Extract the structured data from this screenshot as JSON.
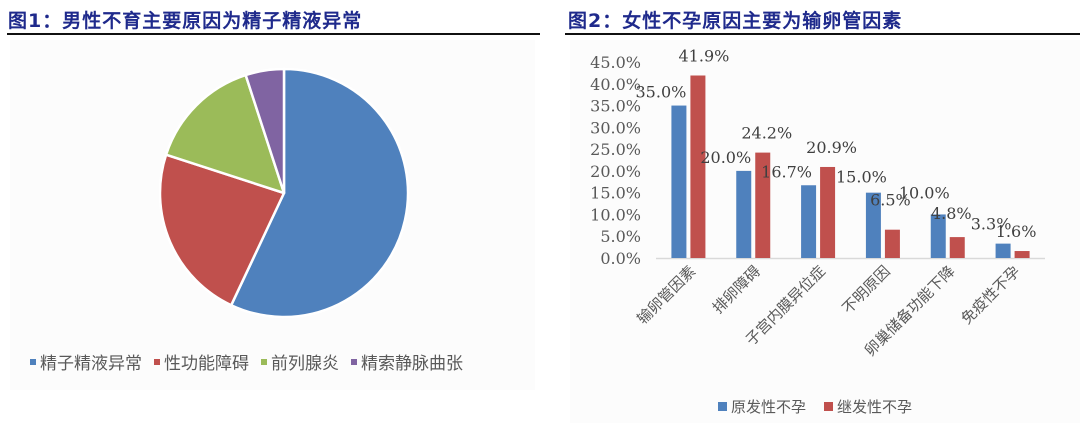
{
  "figure1": {
    "title": "图1：男性不育主要原因为精子精液异常"
  },
  "figure2": {
    "title": "图2：女性不孕原因主要为输卵管因素"
  },
  "chart_data": [
    {
      "type": "pie",
      "title": "图1：男性不育主要原因为精子精液异常",
      "categories": [
        "精子精液异常",
        "性功能障碍",
        "前列腺炎",
        "精索静脉曲张"
      ],
      "values": [
        57,
        23,
        15,
        5
      ],
      "colors": [
        "#4f81bd",
        "#c0504d",
        "#9bbb59",
        "#8064a2"
      ],
      "start_angle_deg": 0,
      "direction": "clockwise",
      "data_labels": false,
      "legend_position": "bottom",
      "legend": [
        "精子精液异常",
        "性功能障碍",
        "前列腺炎",
        "精索静脉曲张"
      ]
    },
    {
      "type": "bar",
      "title": "图2：女性不孕原因主要为输卵管因素",
      "categories": [
        "输卵管因素",
        "排卵障碍",
        "子宫内膜异位症",
        "不明原因",
        "卵巢储备功能下降",
        "免疫性不孕"
      ],
      "series": [
        {
          "name": "原发性不孕",
          "values": [
            35.0,
            20.0,
            16.7,
            15.0,
            10.0,
            3.3
          ],
          "labels": [
            "35.0%",
            "20.0%",
            "16.7%",
            "15.0%",
            "10.0%",
            "3.3%"
          ],
          "color": "#4f81bd"
        },
        {
          "name": "继发性不孕",
          "values": [
            41.9,
            24.2,
            20.9,
            6.5,
            4.8,
            1.6
          ],
          "labels": [
            "41.9%",
            "24.2%",
            "20.9%",
            "6.5%",
            "4.8%",
            "1.6%"
          ],
          "color": "#c0504d"
        }
      ],
      "xlabel": "",
      "ylabel": "",
      "ylim": [
        0,
        45
      ],
      "yticks": [
        "0.0%",
        "5.0%",
        "10.0%",
        "15.0%",
        "20.0%",
        "25.0%",
        "30.0%",
        "35.0%",
        "40.0%",
        "45.0%"
      ],
      "grid": false,
      "x_tick_rotation_deg": -45,
      "legend_position": "bottom",
      "legend": [
        "原发性不孕",
        "继发性不孕"
      ]
    }
  ]
}
